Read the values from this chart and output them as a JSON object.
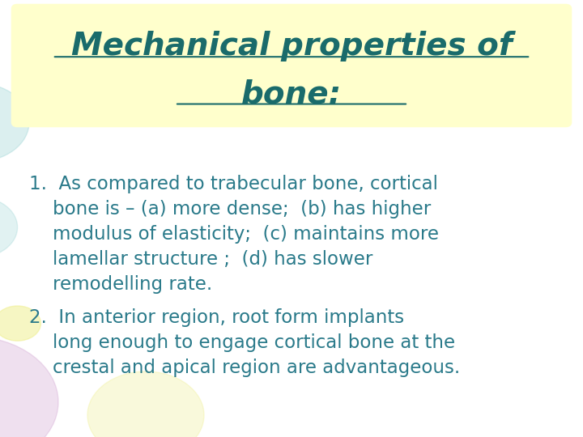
{
  "title_line1": "Mechanical properties of",
  "title_line2": "bone:",
  "title_color": "#1a6b6b",
  "title_fontsize": 28,
  "title_bg_color": "#ffffcc",
  "body_text_color": "#2a7a8a",
  "body_fontsize": 16.5,
  "background_color": "#ffffff",
  "point1": "1.  As compared to trabecular bone, cortical\n    bone is – (a) more dense;  (b) has higher\n    modulus of elasticity;  (c) maintains more\n    lamellar structure ;  (d) has slower\n    remodelling rate.",
  "point2": "2.  In anterior region, root form implants\n    long enough to engage cortical bone at the\n    crestal and apical region are advantageous."
}
